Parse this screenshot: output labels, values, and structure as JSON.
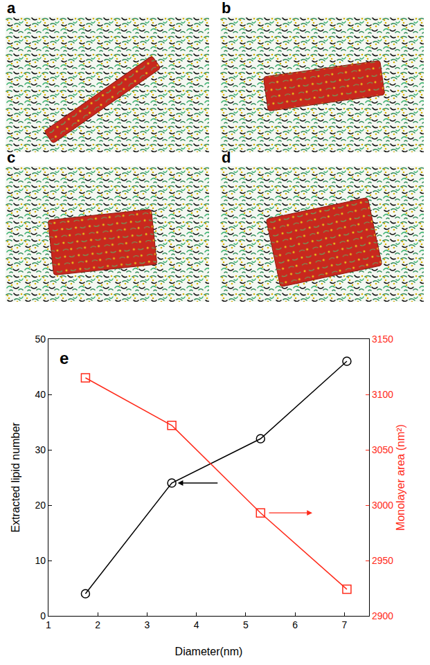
{
  "panels": [
    {
      "label": "a"
    },
    {
      "label": "b"
    },
    {
      "label": "c"
    },
    {
      "label": "d"
    }
  ],
  "chart_data": {
    "type": "line",
    "panel_label": "e",
    "x": [
      1.75,
      3.5,
      5.3,
      7.05
    ],
    "xlabel": "Diameter(nm)",
    "ylabel": "Extracted lipid number",
    "y2label": "Monolayer area (nm²)",
    "xlim": [
      1,
      7.5
    ],
    "xticks": [
      1,
      2,
      3,
      4,
      5,
      6,
      7
    ],
    "ylim": [
      0,
      50
    ],
    "yticks": [
      0,
      10,
      20,
      30,
      40,
      50
    ],
    "y2lim": [
      2900,
      3150
    ],
    "y2ticks": [
      2900,
      2950,
      3000,
      3050,
      3100,
      3150
    ],
    "grid": false,
    "series": [
      {
        "color": "#000000",
        "marker": "open circle",
        "values": [
          4,
          24,
          32,
          46
        ]
      },
      {
        "color": "#ff2a1a",
        "marker": "open square",
        "axis": "y2",
        "values": [
          3115,
          3072,
          2993,
          2924
        ]
      }
    ]
  }
}
